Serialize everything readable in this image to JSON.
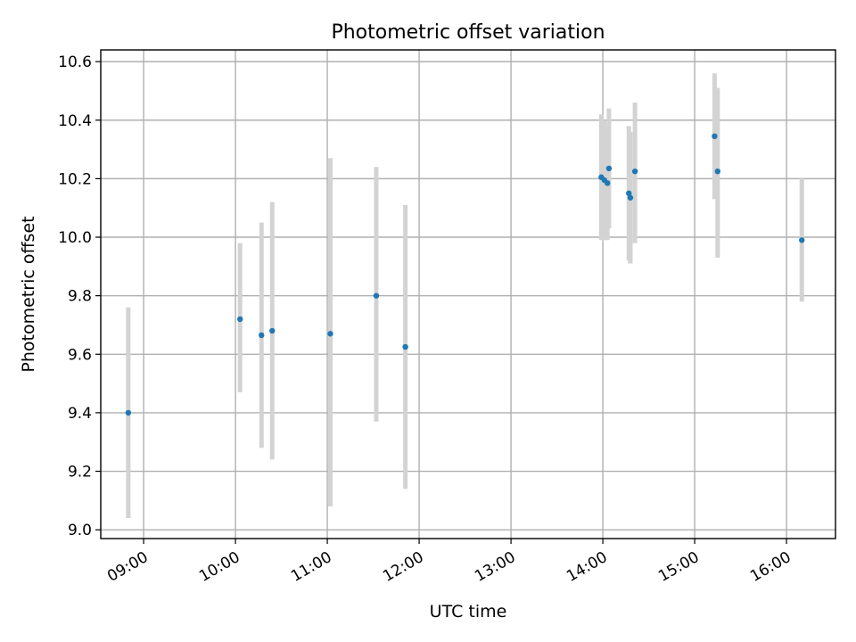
{
  "chart_data": {
    "type": "scatter",
    "title": "Photometric offset variation",
    "xlabel": "UTC time",
    "ylabel": "Photometric offset",
    "x_ticks": [
      "09:00",
      "10:00",
      "11:00",
      "12:00",
      "13:00",
      "14:00",
      "15:00",
      "16:00"
    ],
    "y_ticks": [
      "9.0",
      "9.2",
      "9.4",
      "9.6",
      "9.8",
      "10.0",
      "10.2",
      "10.4",
      "10.6"
    ],
    "xlim": [
      "08:32",
      "16:32"
    ],
    "ylim": [
      8.97,
      10.64
    ],
    "grid": true,
    "point_color": "#1f77b4",
    "errorbar_color": "#d3d3d3",
    "points": [
      {
        "x": "08:50",
        "y": 9.4,
        "ylow": 9.04,
        "yhigh": 9.76
      },
      {
        "x": "10:03",
        "y": 9.72,
        "ylow": 9.47,
        "yhigh": 9.98
      },
      {
        "x": "10:17",
        "y": 9.665,
        "ylow": 9.28,
        "yhigh": 10.05
      },
      {
        "x": "10:24",
        "y": 9.68,
        "ylow": 9.24,
        "yhigh": 10.12
      },
      {
        "x": "11:02",
        "y": 9.67,
        "ylow": 9.08,
        "yhigh": 10.27
      },
      {
        "x": "11:32",
        "y": 9.8,
        "ylow": 9.37,
        "yhigh": 10.24
      },
      {
        "x": "11:51",
        "y": 9.625,
        "ylow": 9.14,
        "yhigh": 10.11
      },
      {
        "x": "13:59",
        "y": 10.205,
        "ylow": 9.99,
        "yhigh": 10.42
      },
      {
        "x": "14:01",
        "y": 10.195,
        "ylow": 9.99,
        "yhigh": 10.4
      },
      {
        "x": "14:03",
        "y": 10.185,
        "ylow": 9.99,
        "yhigh": 10.38
      },
      {
        "x": "14:04",
        "y": 10.235,
        "ylow": 10.03,
        "yhigh": 10.44
      },
      {
        "x": "14:17",
        "y": 10.15,
        "ylow": 9.92,
        "yhigh": 10.38
      },
      {
        "x": "14:18",
        "y": 10.135,
        "ylow": 9.91,
        "yhigh": 10.36
      },
      {
        "x": "14:21",
        "y": 10.225,
        "ylow": 9.98,
        "yhigh": 10.46
      },
      {
        "x": "15:13",
        "y": 10.345,
        "ylow": 10.13,
        "yhigh": 10.56
      },
      {
        "x": "15:15",
        "y": 10.225,
        "ylow": 9.93,
        "yhigh": 10.51
      },
      {
        "x": "16:10",
        "y": 9.99,
        "ylow": 9.78,
        "yhigh": 10.2
      }
    ]
  }
}
